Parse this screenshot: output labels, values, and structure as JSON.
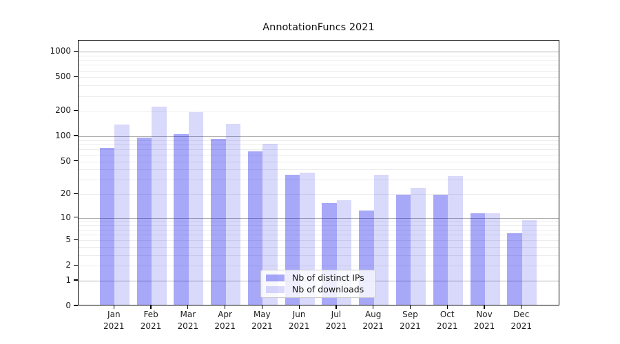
{
  "chart_data": {
    "type": "bar",
    "title": "AnnotationFuncs 2021",
    "categories": [
      "Jan",
      "Feb",
      "Mar",
      "Apr",
      "May",
      "Jun",
      "Jul",
      "Aug",
      "Sep",
      "Oct",
      "Nov",
      "Dec"
    ],
    "year_label": "2021",
    "series": [
      {
        "name": "Nb of distinct IPs",
        "color": "rgba(0,0,235,0.34)",
        "values": [
          70,
          92,
          102,
          90,
          63,
          33,
          15,
          12,
          19,
          19,
          11,
          6
        ]
      },
      {
        "name": "Nb of downloads",
        "color": "rgba(0,0,235,0.15)",
        "values": [
          132,
          218,
          185,
          136,
          78,
          35,
          16,
          33,
          23,
          32,
          11,
          9
        ]
      }
    ],
    "xlabel": "",
    "ylabel": "",
    "y_axis": {
      "scale": "log1p",
      "tick_values": [
        1000,
        500,
        200,
        100,
        50,
        20,
        10,
        5,
        2,
        1,
        0
      ],
      "ylim": [
        0,
        1360
      ],
      "grid": true,
      "major_grid_values": [
        1,
        10,
        100,
        1000
      ],
      "minor_grid_values": [
        2,
        3,
        4,
        5,
        6,
        7,
        8,
        9,
        20,
        30,
        40,
        50,
        60,
        70,
        80,
        90,
        200,
        300,
        400,
        500,
        600,
        700,
        800,
        900
      ]
    },
    "legend": {
      "position": "lower center"
    },
    "colors": {
      "bar_distinct_ips": "rgba(0,0,235,0.34)",
      "bar_downloads": "rgba(0,0,235,0.15)",
      "grid_major": "#b0b0b0",
      "grid_minor": "#ececec",
      "axis": "#000000"
    }
  }
}
